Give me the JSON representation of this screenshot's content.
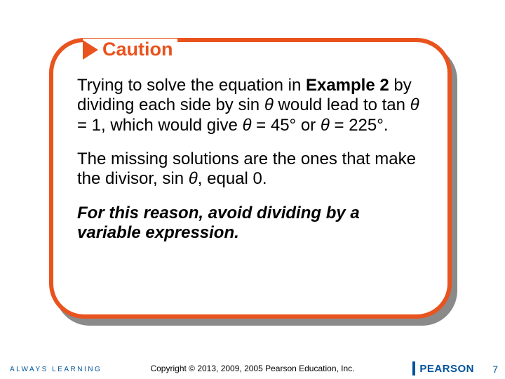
{
  "header": {
    "caution_label": "Caution"
  },
  "paragraphs": {
    "p1_a": "Trying to solve the equation in ",
    "p1_b": "Example 2",
    "p1_c": " by dividing each side by sin ",
    "p1_theta1": "θ",
    "p1_d": " would lead to tan ",
    "p1_theta2": "θ",
    "p1_e": " = 1, which would give ",
    "p1_theta3": "θ",
    "p1_f": " = 45° or ",
    "p1_theta4": "θ",
    "p1_g": " = 225°.",
    "p2_a": "The missing solutions are  the ones that make the divisor, sin ",
    "p2_theta": "θ",
    "p2_b": ", equal 0.",
    "p3": "For this reason, avoid dividing by a variable expression."
  },
  "footer": {
    "always_learning": "ALWAYS LEARNING",
    "copyright": "Copyright © 2013, 2009, 2005 Pearson Education, Inc.",
    "brand": "PEARSON",
    "page_number": "7"
  },
  "colors": {
    "accent": "#e9531e",
    "brand_blue": "#00539b",
    "shadow": "#8a8a8a",
    "bg": "#ffffff",
    "text": "#000000"
  }
}
